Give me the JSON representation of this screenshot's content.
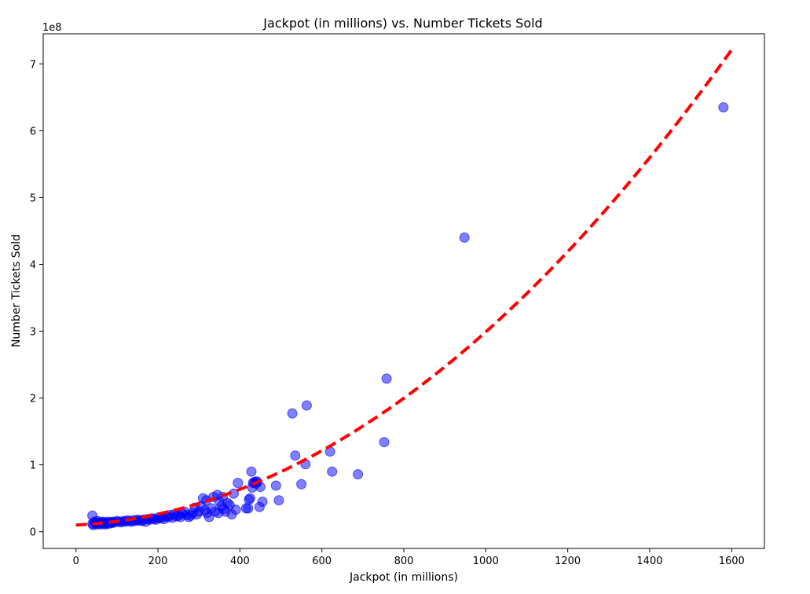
{
  "chart_data": {
    "type": "scatter",
    "title": "Jackpot (in millions) vs. Number Tickets Sold",
    "xlabel": "Jackpot (in millions)",
    "ylabel": "Number Tickets Sold",
    "y_offset_label": "1e8",
    "xlim": [
      -80,
      1680
    ],
    "ylim": [
      -0.25,
      7.45
    ],
    "y_unit_multiplier": 100000000,
    "x_ticks": [
      0,
      200,
      400,
      600,
      800,
      1000,
      1200,
      1400,
      1600
    ],
    "y_ticks": [
      0,
      1,
      2,
      3,
      4,
      5,
      6,
      7
    ],
    "grid": false,
    "legend": "none",
    "colors": {
      "points": "#0000ff",
      "fit_line": "#ff0000",
      "axes": "#000000"
    },
    "series": [
      {
        "kind": "scatter",
        "points": [
          [
            40,
            0.12
          ],
          [
            40,
            0.24
          ],
          [
            42,
            0.1
          ],
          [
            45,
            0.15
          ],
          [
            48,
            0.13
          ],
          [
            50,
            0.11
          ],
          [
            52,
            0.16
          ],
          [
            55,
            0.12
          ],
          [
            58,
            0.14
          ],
          [
            60,
            0.11
          ],
          [
            62,
            0.13
          ],
          [
            65,
            0.15
          ],
          [
            68,
            0.12
          ],
          [
            70,
            0.14
          ],
          [
            72,
            0.11
          ],
          [
            75,
            0.13
          ],
          [
            78,
            0.15
          ],
          [
            80,
            0.12
          ],
          [
            85,
            0.14
          ],
          [
            88,
            0.13
          ],
          [
            90,
            0.15
          ],
          [
            95,
            0.14
          ],
          [
            100,
            0.16
          ],
          [
            105,
            0.15
          ],
          [
            110,
            0.14
          ],
          [
            115,
            0.16
          ],
          [
            120,
            0.15
          ],
          [
            125,
            0.17
          ],
          [
            130,
            0.16
          ],
          [
            135,
            0.15
          ],
          [
            140,
            0.17
          ],
          [
            145,
            0.16
          ],
          [
            150,
            0.18
          ],
          [
            155,
            0.17
          ],
          [
            160,
            0.16
          ],
          [
            165,
            0.18
          ],
          [
            170,
            0.15
          ],
          [
            175,
            0.19
          ],
          [
            180,
            0.18
          ],
          [
            185,
            0.2
          ],
          [
            190,
            0.19
          ],
          [
            195,
            0.18
          ],
          [
            200,
            0.21
          ],
          [
            205,
            0.2
          ],
          [
            210,
            0.22
          ],
          [
            215,
            0.19
          ],
          [
            220,
            0.23
          ],
          [
            225,
            0.22
          ],
          [
            230,
            0.25
          ],
          [
            235,
            0.21
          ],
          [
            240,
            0.26
          ],
          [
            245,
            0.23
          ],
          [
            250,
            0.24
          ],
          [
            255,
            0.22
          ],
          [
            260,
            0.27
          ],
          [
            265,
            0.3
          ],
          [
            270,
            0.25
          ],
          [
            275,
            0.22
          ],
          [
            280,
            0.24
          ],
          [
            285,
            0.28
          ],
          [
            290,
            0.36
          ],
          [
            295,
            0.26
          ],
          [
            300,
            0.3
          ],
          [
            305,
            0.38
          ],
          [
            310,
            0.5
          ],
          [
            315,
            0.32
          ],
          [
            318,
            0.47
          ],
          [
            320,
            0.28
          ],
          [
            325,
            0.22
          ],
          [
            330,
            0.35
          ],
          [
            335,
            0.52
          ],
          [
            340,
            0.3
          ],
          [
            345,
            0.55
          ],
          [
            348,
            0.28
          ],
          [
            350,
            0.45
          ],
          [
            355,
            0.38
          ],
          [
            358,
            0.52
          ],
          [
            360,
            0.34
          ],
          [
            365,
            0.3
          ],
          [
            370,
            0.43
          ],
          [
            375,
            0.4
          ],
          [
            380,
            0.26
          ],
          [
            385,
            0.57
          ],
          [
            390,
            0.33
          ],
          [
            395,
            0.73
          ],
          [
            415,
            0.35
          ],
          [
            420,
            0.35
          ],
          [
            422,
            0.48
          ],
          [
            425,
            0.5
          ],
          [
            428,
            0.9
          ],
          [
            430,
            0.66
          ],
          [
            432,
            0.73
          ],
          [
            435,
            0.74
          ],
          [
            438,
            0.75
          ],
          [
            440,
            0.72
          ],
          [
            442,
            0.75
          ],
          [
            448,
            0.37
          ],
          [
            450,
            0.67
          ],
          [
            455,
            0.45
          ],
          [
            488,
            0.69
          ],
          [
            495,
            0.47
          ],
          [
            528,
            1.77
          ],
          [
            535,
            1.14
          ],
          [
            550,
            0.71
          ],
          [
            560,
            1.01
          ],
          [
            563,
            1.89
          ],
          [
            620,
            1.2
          ],
          [
            625,
            0.9
          ],
          [
            688,
            0.86
          ],
          [
            752,
            1.34
          ],
          [
            758,
            2.29
          ],
          [
            948,
            4.4
          ],
          [
            1580,
            6.35
          ]
        ]
      },
      {
        "kind": "fit_line",
        "style": "dashed",
        "quadratic_coefficients": [
          0.000259,
          0.0003,
          0.1
        ],
        "x_range": [
          0,
          1600
        ]
      }
    ]
  }
}
